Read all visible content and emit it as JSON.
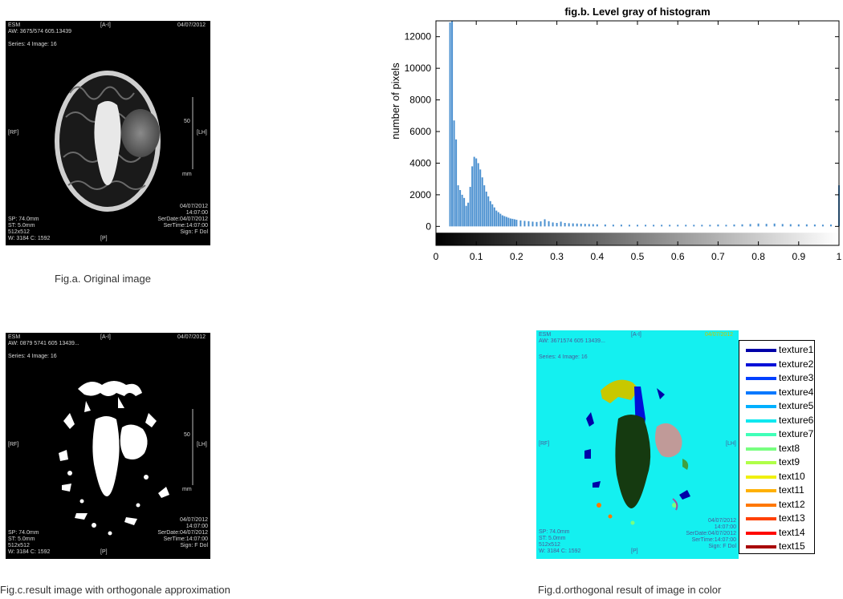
{
  "fig_a": {
    "caption": "Fig.a. Original image",
    "overlays": {
      "top_left_1": "ESM",
      "top_left_2": "AW: 3675/574  605.13439",
      "top_left_3": "Series: 4 Image: 16",
      "top_center": "[A-I]",
      "top_right": "04/07/2012",
      "left_mid": "[RF]",
      "right_mid": "[LH]",
      "bottom_left_1": "SP: 74.0mm",
      "bottom_left_2": "ST: 5.0mm",
      "bottom_left_3": "512x512",
      "bottom_left_4": "W: 3184 C: 1592",
      "bottom_center": "[P]",
      "bottom_right_1": "04/07/2012",
      "bottom_right_2": "14:07:00",
      "bottom_right_3": "SerDate:04/07/2012",
      "bottom_right_4": "SerTime:14:07:00",
      "bottom_right_5": "Sign: F Dol",
      "ruler_label": "50",
      "ruler_unit": "mm"
    }
  },
  "fig_c": {
    "caption": "Fig.c.result image with  orthogonale approximation",
    "overlays": {
      "top_left_1": "ESM",
      "top_left_2": "AW: 0879 5741 605 13439...",
      "top_left_3": "Series: 4 Image: 16",
      "top_center": "[A-I]",
      "top_right": "04/07/2012",
      "left_mid": "[RF]",
      "right_mid": "[LH]",
      "bottom_left_1": "SP: 74.0mm",
      "bottom_left_2": "ST: 5.0mm",
      "bottom_left_3": "512x512",
      "bottom_left_4": "W: 3184 C: 1592",
      "bottom_center": "[P]",
      "bottom_right_1": "04/07/2012",
      "bottom_right_2": "14:07:00",
      "bottom_right_3": "SerDate:04/07/2012",
      "bottom_right_4": "SerTime:14:07:00",
      "bottom_right_5": "Sign: F Dol",
      "ruler_label": "50",
      "ruler_unit": "mm"
    }
  },
  "fig_d": {
    "caption": "Fig.d.orthogonal result of image in color",
    "overlays": {
      "top_left_1": "ESM",
      "top_left_2": "AW: 3671574 605 13439...",
      "top_left_3": "Series: 4 Image: 16",
      "top_center": "[A-I]",
      "top_right": "04/07/2012",
      "left_mid": "[RF]",
      "right_mid": "[LH]",
      "bottom_left_1": "SP: 74.0mm",
      "bottom_left_2": "ST: 5.0mm",
      "bottom_left_3": "512x512",
      "bottom_left_4": "W: 3184 C: 1592",
      "bottom_center": "[P]",
      "bottom_right_1": "04/07/2012",
      "bottom_right_2": "14:07:00",
      "bottom_right_3": "SerDate:04/07/2012",
      "bottom_right_4": "SerTime:14:07:00",
      "bottom_right_5": "Sign: F Dol"
    },
    "legend": [
      {
        "label": "texture1",
        "color": "#0000a8"
      },
      {
        "label": "texture2",
        "color": "#0010d8"
      },
      {
        "label": "texture3",
        "color": "#0040ff"
      },
      {
        "label": "texture4",
        "color": "#0078ff"
      },
      {
        "label": "texture5",
        "color": "#00b0ff"
      },
      {
        "label": "texture6",
        "color": "#10e8f0"
      },
      {
        "label": "texture7",
        "color": "#40ffb8"
      },
      {
        "label": "text8",
        "color": "#78ff80"
      },
      {
        "label": "text9",
        "color": "#b0ff48"
      },
      {
        "label": "text10",
        "color": "#f0f010"
      },
      {
        "label": "text11",
        "color": "#ffb000"
      },
      {
        "label": "text12",
        "color": "#ff7800"
      },
      {
        "label": "text13",
        "color": "#ff4000"
      },
      {
        "label": "text14",
        "color": "#ff0800"
      },
      {
        "label": "text15",
        "color": "#a80000"
      }
    ]
  },
  "chart_data": {
    "type": "bar",
    "title": "fig.b.  Level gray of histogram",
    "xlabel": "",
    "ylabel": "number of pixels",
    "xlim": [
      0,
      1
    ],
    "ylim": [
      -1200,
      13000
    ],
    "xticks": [
      "0",
      "0.1",
      "0.2",
      "0.3",
      "0.4",
      "0.5",
      "0.6",
      "0.7",
      "0.8",
      "0.9",
      "1"
    ],
    "yticks": [
      "0",
      "2000",
      "4000",
      "6000",
      "8000",
      "10000",
      "12000"
    ],
    "bar_color": "#4a90d0",
    "colorbar": "grayscale black to white",
    "x": [
      0.035,
      0.04,
      0.045,
      0.05,
      0.055,
      0.06,
      0.065,
      0.07,
      0.075,
      0.08,
      0.085,
      0.09,
      0.095,
      0.1,
      0.105,
      0.11,
      0.115,
      0.12,
      0.125,
      0.13,
      0.135,
      0.14,
      0.145,
      0.15,
      0.155,
      0.16,
      0.165,
      0.17,
      0.175,
      0.18,
      0.185,
      0.19,
      0.195,
      0.2,
      0.21,
      0.22,
      0.23,
      0.24,
      0.25,
      0.26,
      0.27,
      0.28,
      0.29,
      0.3,
      0.31,
      0.32,
      0.33,
      0.34,
      0.35,
      0.36,
      0.37,
      0.38,
      0.39,
      0.4,
      0.42,
      0.44,
      0.46,
      0.48,
      0.5,
      0.52,
      0.54,
      0.56,
      0.58,
      0.6,
      0.62,
      0.64,
      0.66,
      0.68,
      0.7,
      0.72,
      0.74,
      0.76,
      0.78,
      0.8,
      0.82,
      0.84,
      0.86,
      0.88,
      0.9,
      0.92,
      0.94,
      0.96,
      0.98,
      1.0
    ],
    "values": [
      12900,
      13000,
      6700,
      5500,
      2600,
      2300,
      2000,
      1800,
      1300,
      1500,
      2500,
      3800,
      4400,
      4300,
      4000,
      3600,
      3100,
      2600,
      2200,
      1900,
      1600,
      1400,
      1200,
      1000,
      900,
      800,
      700,
      650,
      600,
      550,
      500,
      480,
      450,
      420,
      380,
      350,
      330,
      300,
      280,
      320,
      450,
      330,
      250,
      220,
      300,
      220,
      200,
      190,
      180,
      170,
      160,
      150,
      140,
      130,
      120,
      110,
      110,
      100,
      100,
      100,
      100,
      100,
      100,
      100,
      100,
      100,
      100,
      100,
      120,
      100,
      120,
      130,
      150,
      180,
      160,
      180,
      150,
      140,
      130,
      130,
      120,
      110,
      120,
      2600
    ]
  }
}
